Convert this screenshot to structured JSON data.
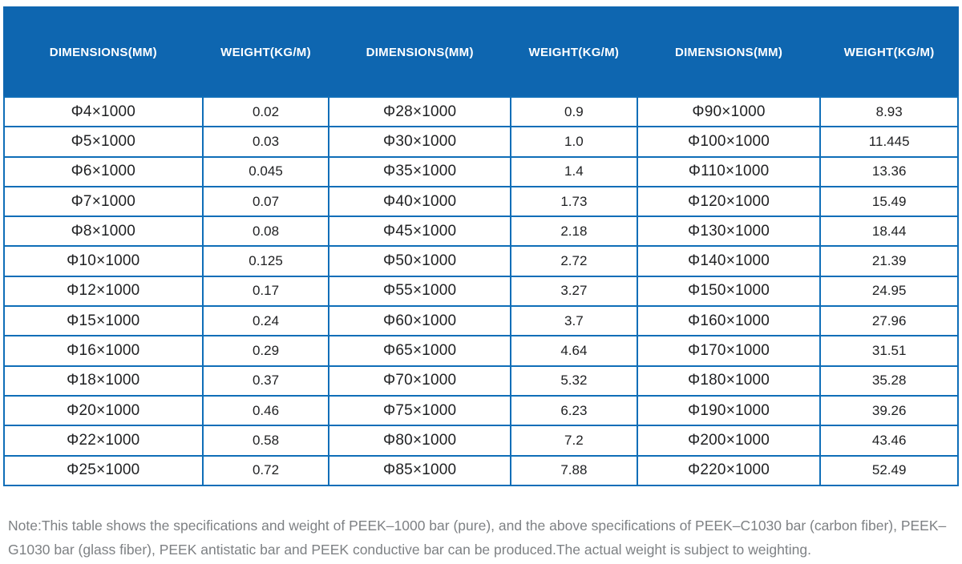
{
  "table": {
    "headers": [
      "DIMENSIONS(MM)",
      "WEIGHT(KG/M)",
      "DIMENSIONS(MM)",
      "WEIGHT(KG/M)",
      "DIMENSIONS(MM)",
      "WEIGHT(KG/M)"
    ],
    "rows": [
      [
        "Φ4×1000",
        "0.02",
        "Φ28×1000",
        "0.9",
        "Φ90×1000",
        "8.93"
      ],
      [
        "Φ5×1000",
        "0.03",
        "Φ30×1000",
        "1.0",
        "Φ100×1000",
        "11.445"
      ],
      [
        "Φ6×1000",
        "0.045",
        "Φ35×1000",
        "1.4",
        "Φ110×1000",
        "13.36"
      ],
      [
        "Φ7×1000",
        "0.07",
        "Φ40×1000",
        "1.73",
        "Φ120×1000",
        "15.49"
      ],
      [
        "Φ8×1000",
        "0.08",
        "Φ45×1000",
        "2.18",
        "Φ130×1000",
        "18.44"
      ],
      [
        "Φ10×1000",
        "0.125",
        "Φ50×1000",
        "2.72",
        "Φ140×1000",
        "21.39"
      ],
      [
        "Φ12×1000",
        "0.17",
        "Φ55×1000",
        "3.27",
        "Φ150×1000",
        "24.95"
      ],
      [
        "Φ15×1000",
        "0.24",
        "Φ60×1000",
        "3.7",
        "Φ160×1000",
        "27.96"
      ],
      [
        "Φ16×1000",
        "0.29",
        "Φ65×1000",
        "4.64",
        "Φ170×1000",
        "31.51"
      ],
      [
        "Φ18×1000",
        "0.37",
        "Φ70×1000",
        "5.32",
        "Φ180×1000",
        "35.28"
      ],
      [
        "Φ20×1000",
        "0.46",
        "Φ75×1000",
        "6.23",
        "Φ190×1000",
        "39.26"
      ],
      [
        "Φ22×1000",
        "0.58",
        "Φ80×1000",
        "7.2",
        "Φ200×1000",
        "43.46"
      ],
      [
        "Φ25×1000",
        "0.72",
        "Φ85×1000",
        "7.88",
        "Φ220×1000",
        "52.49"
      ]
    ],
    "note": "Note:This table shows the specifications and weight of PEEK–1000 bar (pure), and the above specifications of PEEK–C1030 bar (carbon fiber), PEEK–G1030 bar (glass fiber), PEEK antistatic bar and PEEK conductive bar can be produced.The actual weight is subject to weighting."
  },
  "colors": {
    "header_bg": "#0e66b0",
    "header_separator": "#0b5b9d",
    "grid_border": "#0f6eb8",
    "header_text": "#ffffff",
    "cell_text": "#1f2022",
    "note_text": "#7e8184"
  }
}
